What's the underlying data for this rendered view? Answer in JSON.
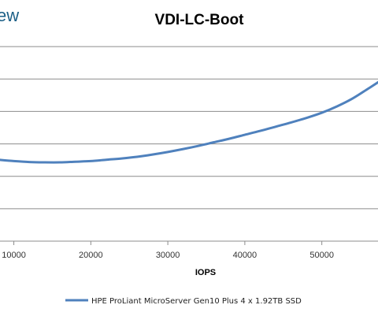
{
  "brand_fragment": "ew",
  "colors": {
    "series": "#4f81bd",
    "grid": "#8c8c8c",
    "brand": "#1b5f86"
  },
  "chart_data": {
    "type": "line",
    "title": "VDI-LC-Boot",
    "xlabel": "IOPS",
    "ylabel": "",
    "xlim": [
      8000,
      57500
    ],
    "ylim": [
      0,
      7
    ],
    "x_ticks": [
      10000,
      20000,
      30000,
      40000,
      50000
    ],
    "x_tick_labels": [
      "10000",
      "20000",
      "30000",
      "40000",
      "50000"
    ],
    "y_gridlines": [
      1,
      2,
      3,
      4,
      5,
      6
    ],
    "grid": true,
    "legend_position": "bottom",
    "series": [
      {
        "name": "HPE ProLiant MicroServer Gen10 Plus 4 x 1.92TB SSD",
        "x": [
          8000,
          10000,
          12000,
          14000,
          16000,
          18000,
          20000,
          22000,
          24000,
          26000,
          28000,
          30000,
          32000,
          34000,
          36000,
          38000,
          40000,
          42000,
          44000,
          46000,
          48000,
          50000,
          52000,
          54000,
          56000,
          57500
        ],
        "y": [
          2.51,
          2.47,
          2.44,
          2.43,
          2.43,
          2.45,
          2.47,
          2.51,
          2.55,
          2.6,
          2.67,
          2.75,
          2.84,
          2.94,
          3.05,
          3.16,
          3.28,
          3.4,
          3.53,
          3.66,
          3.8,
          3.96,
          4.16,
          4.4,
          4.7,
          4.93
        ]
      }
    ]
  }
}
